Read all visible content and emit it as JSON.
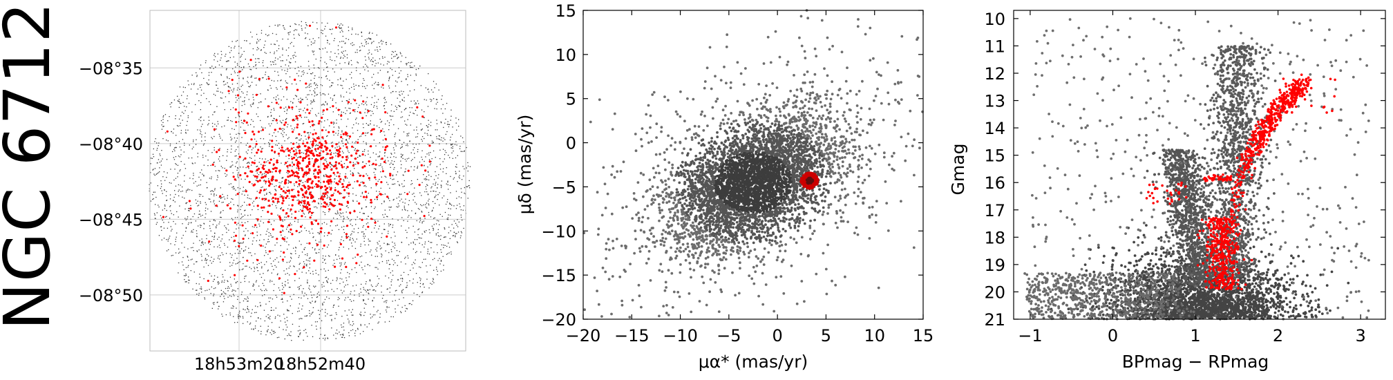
{
  "cluster_name": "NGC 6712",
  "colors": {
    "field": "#555555",
    "member": "#ff0000",
    "grid": "#cccccc",
    "axis": "#000000"
  },
  "chart_data": [
    {
      "type": "scatter",
      "panel": "sky",
      "title": "",
      "xlabel": "",
      "ylabel": "",
      "x_ticks": [
        "18h53m20",
        "18h52m40"
      ],
      "y_ticks": [
        "−08°35",
        "−08°40",
        "−08°45",
        "−08°50"
      ],
      "dec_tick_values_arcmin": [
        -35,
        -40,
        -45,
        -50
      ],
      "ra_tick_values_deg": [
        283.3333,
        283.1667
      ],
      "field_region": {
        "center_ra_deg": 283.27,
        "center_dec_deg": -8.703,
        "radius_arcmin": 10
      },
      "members_region": {
        "center_ra_deg": 283.27,
        "center_dec_deg": -8.703,
        "core_sigma_arcmin": 1.5,
        "halo_sigma_arcmin": 3.0
      },
      "grid": true,
      "series": []
    },
    {
      "type": "scatter",
      "panel": "proper_motion",
      "title": "",
      "xlabel": "μα* (mas/yr)",
      "ylabel": "μδ (mas/yr)",
      "xlim": [
        -20,
        15
      ],
      "ylim": [
        -20,
        15
      ],
      "x_ticks": [
        -20,
        -15,
        -10,
        -5,
        0,
        5,
        10,
        15
      ],
      "y_ticks": [
        -20,
        -15,
        -10,
        -5,
        0,
        5,
        10,
        15
      ],
      "field_distribution": {
        "center": [
          -2.5,
          -4.5
        ],
        "sigma": [
          4.0,
          3.5
        ],
        "correlation": 0.45
      },
      "cluster_centroid": [
        3.3,
        -4.3
      ],
      "cluster_radius": 0.9,
      "grid": false,
      "series": []
    },
    {
      "type": "scatter",
      "panel": "cmd",
      "title": "",
      "xlabel": "BPmag − RPmag",
      "ylabel": "Gmag",
      "xlim": [
        -1.2,
        3.3
      ],
      "ylim": [
        21,
        9.7
      ],
      "y_inverted": true,
      "x_ticks": [
        -1,
        0,
        1,
        2,
        3
      ],
      "y_ticks": [
        10,
        11,
        12,
        13,
        14,
        15,
        16,
        17,
        18,
        19,
        20,
        21
      ],
      "red_giant_branch": [
        [
          1.3,
          18.5
        ],
        [
          1.45,
          17.0
        ],
        [
          1.6,
          15.5
        ],
        [
          1.75,
          14.5
        ],
        [
          1.9,
          13.8
        ],
        [
          2.1,
          13.0
        ],
        [
          2.3,
          12.4
        ]
      ],
      "horizontal_branch": {
        "x_range": [
          1.1,
          1.45
        ],
        "g": 15.85
      },
      "blue_horizontal_branch": {
        "x_range": [
          0.4,
          0.9
        ],
        "g_range": [
          16.0,
          16.8
        ]
      },
      "grid": false,
      "series": []
    }
  ]
}
